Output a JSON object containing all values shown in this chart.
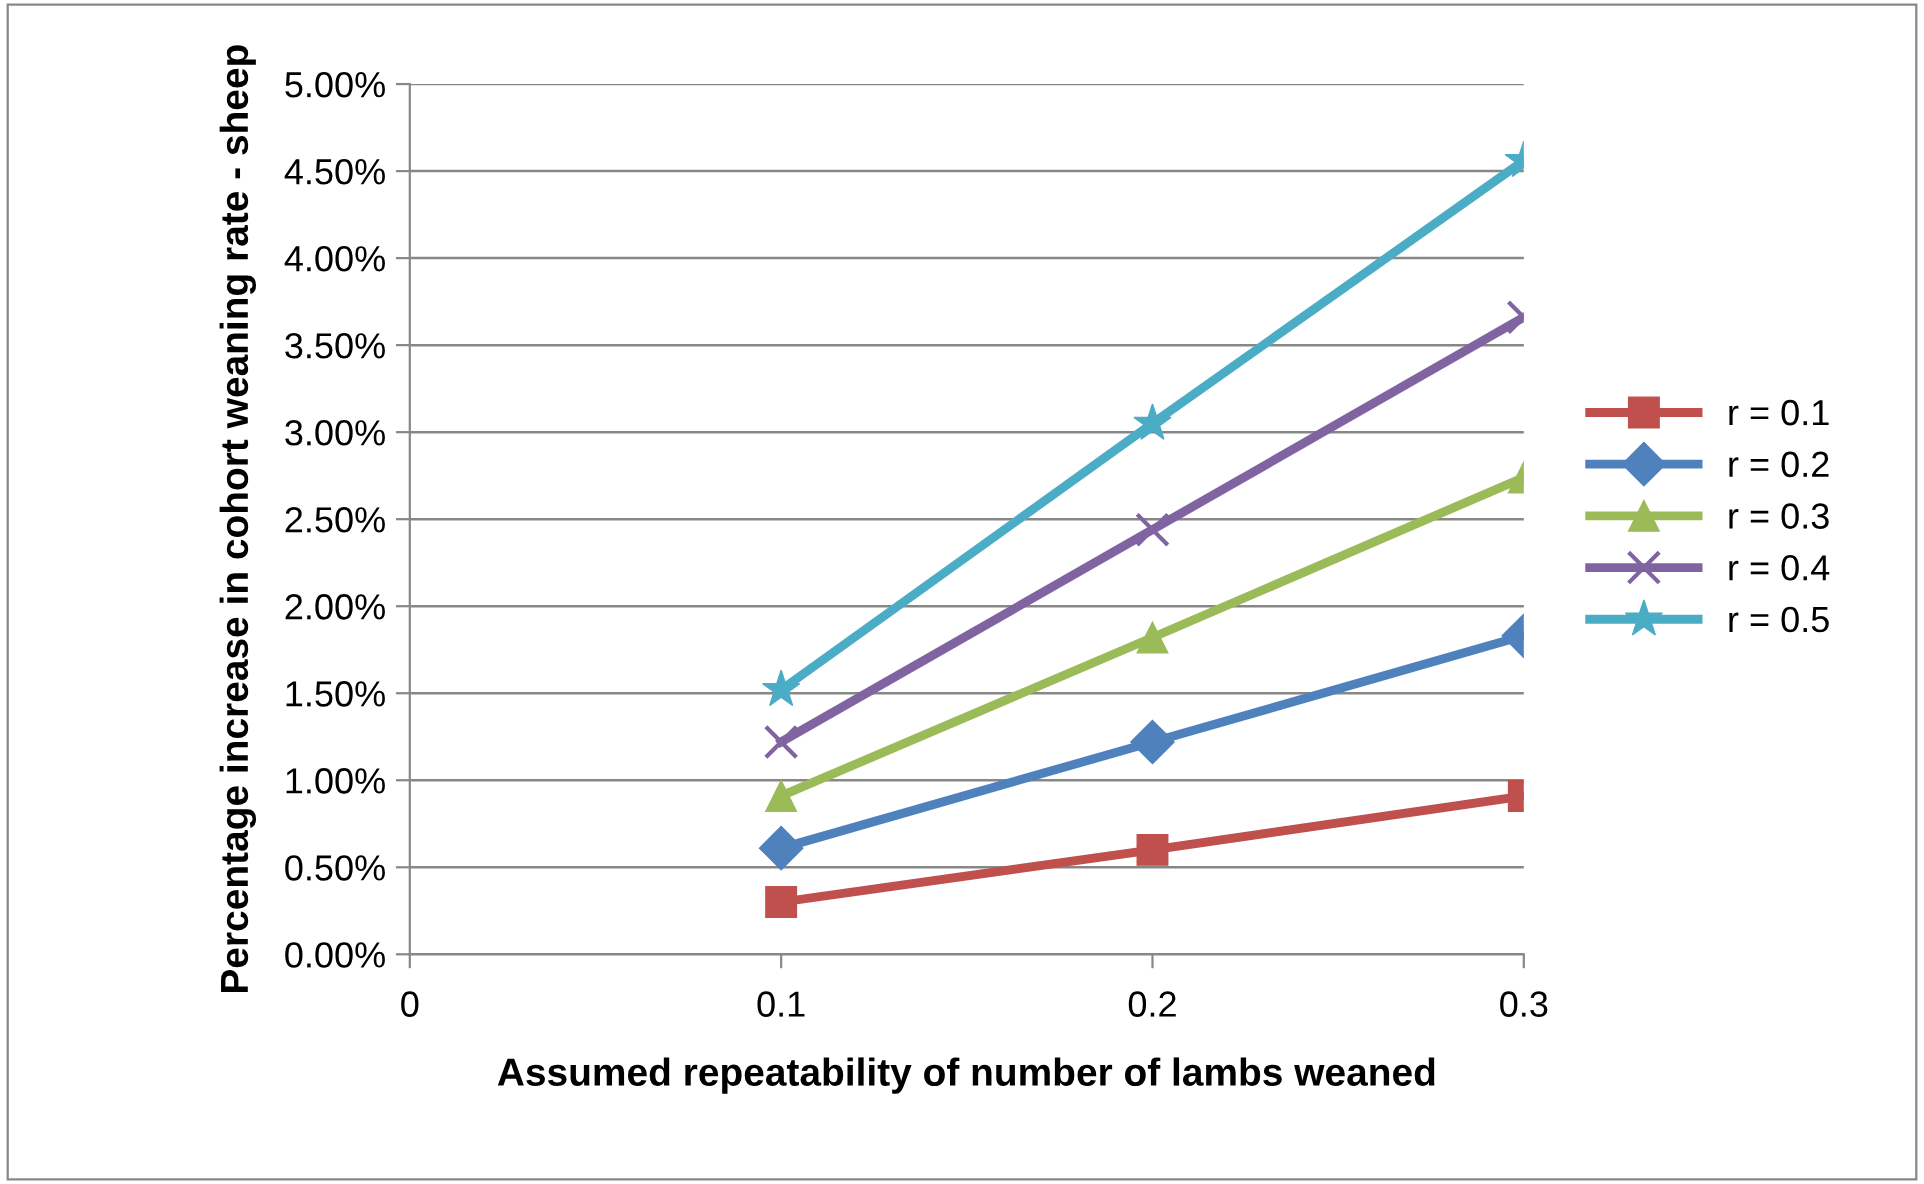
{
  "chart_data": {
    "type": "line",
    "xlabel": "Assumed repeatability of number of lambs weaned",
    "ylabel": "Percentage increase in cohort weaning rate - sheep",
    "x": [
      0.1,
      0.2,
      0.3
    ],
    "series": [
      {
        "name": "r = 0.1",
        "color": "#c0504d",
        "marker": "square",
        "values": [
          0.3,
          0.6,
          0.91
        ]
      },
      {
        "name": "r = 0.2",
        "color": "#4f81bd",
        "marker": "diamond",
        "values": [
          0.61,
          1.22,
          1.83
        ]
      },
      {
        "name": "r = 0.3",
        "color": "#9bbb59",
        "marker": "triangle",
        "values": [
          0.91,
          1.82,
          2.74
        ]
      },
      {
        "name": "r = 0.4",
        "color": "#8064a2",
        "marker": "cross",
        "values": [
          1.22,
          2.44,
          3.66
        ]
      },
      {
        "name": "r = 0.5",
        "color": "#4bacc6",
        "marker": "star",
        "values": [
          1.52,
          3.05,
          4.56
        ]
      }
    ],
    "xlim": [
      0,
      0.3
    ],
    "xticks": [
      0,
      0.1,
      0.2,
      0.3
    ],
    "ylim": [
      0,
      5
    ],
    "yticks": [
      {
        "value": 0,
        "label": "0.00%"
      },
      {
        "value": 0.5,
        "label": "0.50%"
      },
      {
        "value": 1,
        "label": "1.00%"
      },
      {
        "value": 1.5,
        "label": "1.50%"
      },
      {
        "value": 2,
        "label": "2.00%"
      },
      {
        "value": 2.5,
        "label": "2.50%"
      },
      {
        "value": 3,
        "label": "3.00%"
      },
      {
        "value": 3.5,
        "label": "3.50%"
      },
      {
        "value": 4,
        "label": "4.00%"
      },
      {
        "value": 4.5,
        "label": "4.50%"
      },
      {
        "value": 5,
        "label": "5.00%"
      }
    ],
    "grid": "y",
    "legend": "right",
    "line_style": "solid"
  }
}
